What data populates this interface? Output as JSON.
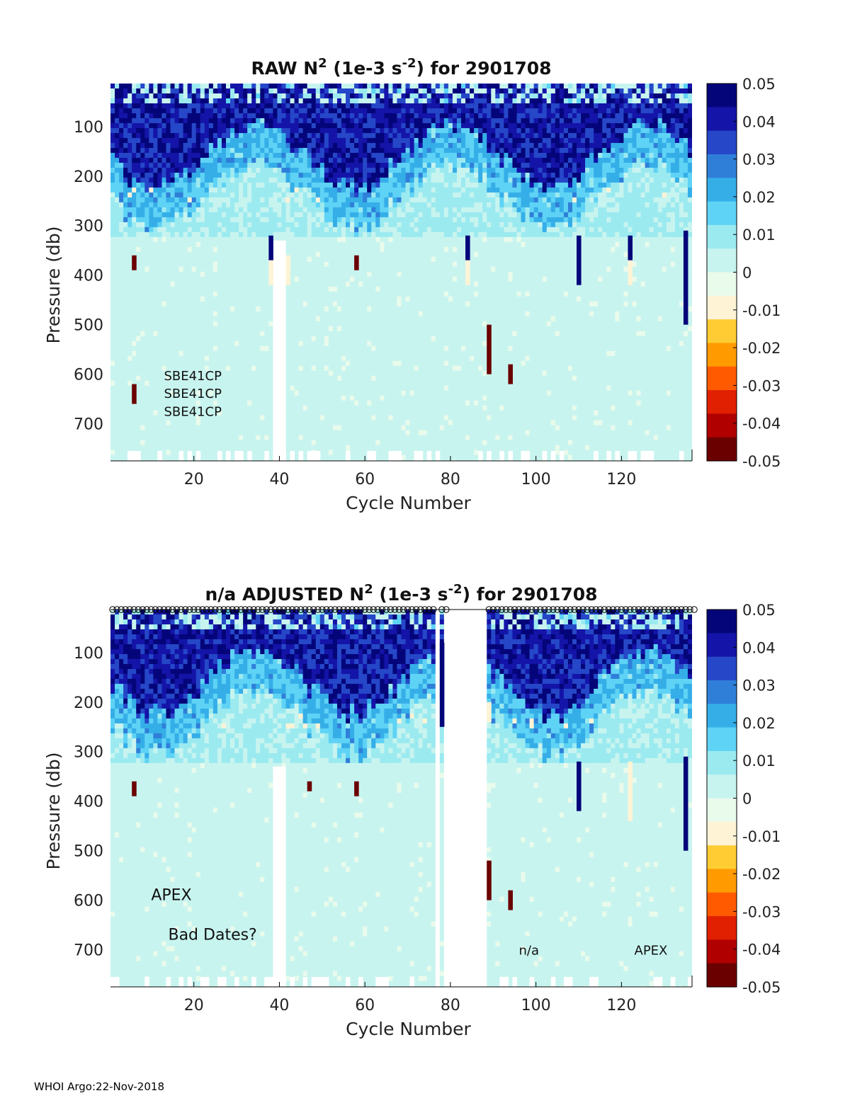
{
  "footer": "WHOI Argo:22-Nov-2018",
  "colors": {
    "ramp": [
      "#6b0000",
      "#b00000",
      "#e02000",
      "#ff5a00",
      "#ff9a00",
      "#ffcc33",
      "#fff3d6",
      "#e9fbeb",
      "#c8f4ef",
      "#9beaf0",
      "#5fd3f5",
      "#35aee8",
      "#2f7fd9",
      "#2547c8",
      "#1414a8",
      "#05057a"
    ],
    "background": "#ecfaec"
  },
  "chart_data": [
    {
      "type": "heatmap",
      "title_parts": {
        "pre": "RAW N",
        "sup": "2",
        "mid": " (1e-3 s",
        "sup2": "-2",
        "post": ") for 2901708"
      },
      "xlabel": "Cycle Number",
      "ylabel": "Pressure (db)",
      "xlim": [
        1,
        136
      ],
      "ylim": [
        775,
        13
      ],
      "x_ticks": [
        20,
        40,
        60,
        80,
        100,
        120
      ],
      "y_ticks": [
        100,
        200,
        300,
        400,
        500,
        600,
        700
      ],
      "colorbar": {
        "min": -0.05,
        "max": 0.05,
        "ticks": [
          "0.05",
          "0.04",
          "0.03",
          "0.02",
          "0.01",
          "0",
          "-0.01",
          "-0.02",
          "-0.03",
          "-0.04",
          "-0.05"
        ]
      },
      "annotations": [
        {
          "text": "SBE41CP",
          "x": 13,
          "y": 612
        },
        {
          "text": "SBE41CP",
          "x": 13,
          "y": 648
        },
        {
          "text": "SBE41CP",
          "x": 13,
          "y": 684
        }
      ],
      "missing_cycles": [],
      "gaps": [
        {
          "x0": 38,
          "x1": 42,
          "y0": 330
        }
      ],
      "strong_features": [
        {
          "x": 38,
          "p0": 320,
          "p1": 370,
          "v": 0.05
        },
        {
          "x": 38,
          "p0": 370,
          "p1": 420,
          "v": -0.012
        },
        {
          "x": 42,
          "p0": 360,
          "p1": 420,
          "v": -0.012
        },
        {
          "x": 58,
          "p0": 360,
          "p1": 390,
          "v": -0.05
        },
        {
          "x": 84,
          "p0": 320,
          "p1": 370,
          "v": 0.05
        },
        {
          "x": 84,
          "p0": 370,
          "p1": 420,
          "v": -0.012
        },
        {
          "x": 89,
          "p0": 500,
          "p1": 600,
          "v": -0.048
        },
        {
          "x": 94,
          "p0": 580,
          "p1": 620,
          "v": -0.05
        },
        {
          "x": 110,
          "p0": 320,
          "p1": 420,
          "v": 0.05
        },
        {
          "x": 122,
          "p0": 320,
          "p1": 370,
          "v": 0.05
        },
        {
          "x": 122,
          "p0": 370,
          "p1": 420,
          "v": -0.012
        },
        {
          "x": 135,
          "p0": 310,
          "p1": 500,
          "v": 0.045
        },
        {
          "x": 6,
          "p0": 360,
          "p1": 390,
          "v": -0.05
        },
        {
          "x": 6,
          "p0": 620,
          "p1": 660,
          "v": -0.045
        }
      ]
    },
    {
      "type": "heatmap",
      "title_parts": {
        "pre": "n/a  ADJUSTED N",
        "sup": "2",
        "mid": " (1e-3 s",
        "sup2": "-2",
        "post": ") for 2901708"
      },
      "xlabel": "Cycle Number",
      "ylabel": "Pressure (db)",
      "xlim": [
        1,
        136
      ],
      "ylim": [
        775,
        13
      ],
      "x_ticks": [
        20,
        40,
        60,
        80,
        100,
        120
      ],
      "y_ticks": [
        100,
        200,
        300,
        400,
        500,
        600,
        700
      ],
      "colorbar": {
        "min": -0.05,
        "max": 0.05,
        "ticks": [
          "0.05",
          "0.04",
          "0.03",
          "0.02",
          "0.01",
          "0",
          "-0.01",
          "-0.02",
          "-0.03",
          "-0.04",
          "-0.05"
        ]
      },
      "annotations": [
        {
          "text": "APEX",
          "x": 10,
          "y": 600
        },
        {
          "text": "Bad Dates?",
          "x": 14,
          "y": 680
        },
        {
          "text": "n/a",
          "x": 96,
          "y": 710
        },
        {
          "text": "APEX",
          "x": 123,
          "y": 710
        }
      ],
      "missing_cycles": [
        77,
        79,
        80,
        81,
        82,
        83,
        84,
        85,
        86,
        87,
        88
      ],
      "gaps": [
        {
          "x0": 38,
          "x1": 42,
          "y0": 330
        }
      ],
      "strong_features": [
        {
          "x": 78,
          "p0": 80,
          "p1": 250,
          "v": 0.05
        },
        {
          "x": 89,
          "p0": 200,
          "p1": 240,
          "v": -0.012
        },
        {
          "x": 89,
          "p0": 520,
          "p1": 600,
          "v": -0.048
        },
        {
          "x": 94,
          "p0": 580,
          "p1": 620,
          "v": -0.05
        },
        {
          "x": 110,
          "p0": 320,
          "p1": 420,
          "v": 0.05
        },
        {
          "x": 122,
          "p0": 320,
          "p1": 440,
          "v": -0.012
        },
        {
          "x": 135,
          "p0": 310,
          "p1": 500,
          "v": 0.045
        },
        {
          "x": 47,
          "p0": 360,
          "p1": 380,
          "v": -0.05
        },
        {
          "x": 58,
          "p0": 360,
          "p1": 390,
          "v": -0.05
        },
        {
          "x": 6,
          "p0": 360,
          "p1": 390,
          "v": -0.05
        }
      ]
    }
  ]
}
